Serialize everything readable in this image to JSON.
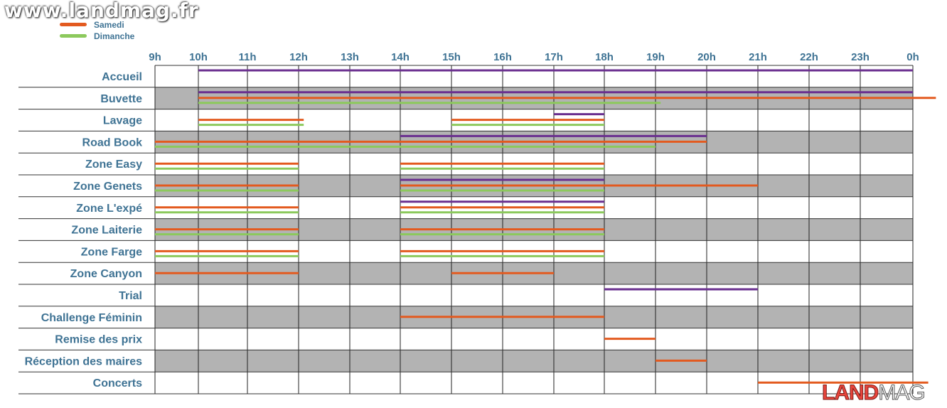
{
  "watermark": "www.landmag.fr",
  "logo": {
    "part1": "LAND",
    "part2": "MAG"
  },
  "colors": {
    "purple": "#6a2f8f",
    "orange": "#e35a1f",
    "green": "#8cc95c",
    "grey": "#b3b3b3",
    "label": "#3f7394"
  },
  "chart_data": {
    "type": "gantt",
    "legend": [
      {
        "name": "Samedi",
        "color": "#e35a1f"
      },
      {
        "name": "Dimanche",
        "color": "#8cc95c"
      }
    ],
    "legend_placement": "top-left",
    "x_ticks": [
      "9h",
      "10h",
      "11h",
      "12h",
      "13h",
      "14h",
      "15h",
      "16h",
      "17h",
      "18h",
      "19h",
      "20h",
      "21h",
      "22h",
      "23h",
      "0h"
    ],
    "xlim": [
      9,
      24
    ],
    "rows": [
      {
        "label": "Accueil",
        "purple": [
          [
            10,
            24
          ]
        ],
        "orange": [],
        "green": []
      },
      {
        "label": "Buvette",
        "purple": [
          [
            10,
            24
          ]
        ],
        "orange": [
          [
            10,
            24.45
          ]
        ],
        "green": [
          [
            10,
            19.1
          ]
        ]
      },
      {
        "label": "Lavage",
        "purple": [
          [
            17,
            18
          ]
        ],
        "orange": [
          [
            10,
            12.1
          ],
          [
            15,
            18
          ]
        ],
        "green": [
          [
            10,
            12.1
          ],
          [
            15,
            18
          ]
        ]
      },
      {
        "label": "Road Book",
        "purple": [
          [
            14,
            20
          ]
        ],
        "orange": [
          [
            9,
            20
          ]
        ],
        "green": [
          [
            9,
            19
          ]
        ]
      },
      {
        "label": "Zone Easy",
        "purple": [],
        "orange": [
          [
            9,
            12
          ],
          [
            14,
            18
          ]
        ],
        "green": [
          [
            9,
            12
          ],
          [
            14,
            18
          ]
        ]
      },
      {
        "label": "Zone Genets",
        "purple": [
          [
            14,
            18
          ]
        ],
        "orange": [
          [
            9,
            12
          ],
          [
            14,
            21
          ]
        ],
        "green": [
          [
            9,
            12
          ],
          [
            14,
            18
          ]
        ]
      },
      {
        "label": "Zone L'expé",
        "purple": [
          [
            14,
            18
          ]
        ],
        "orange": [
          [
            9,
            12
          ],
          [
            14,
            18
          ]
        ],
        "green": [
          [
            9,
            12
          ],
          [
            14,
            18
          ]
        ]
      },
      {
        "label": "Zone Laiterie",
        "purple": [],
        "orange": [
          [
            9,
            12
          ],
          [
            14,
            18
          ]
        ],
        "green": [
          [
            9,
            12
          ],
          [
            14,
            18
          ]
        ]
      },
      {
        "label": "Zone Farge",
        "purple": [],
        "orange": [
          [
            9,
            12
          ],
          [
            14,
            18
          ]
        ],
        "green": [
          [
            9,
            12
          ],
          [
            14,
            18
          ]
        ]
      },
      {
        "label": "Zone Canyon",
        "purple": [],
        "orange": [
          [
            9,
            12
          ],
          [
            15,
            17
          ]
        ],
        "green": []
      },
      {
        "label": "Trial",
        "purple": [
          [
            18,
            21
          ]
        ],
        "orange": [],
        "green": []
      },
      {
        "label": "Challenge Féminin",
        "purple": [],
        "orange": [
          [
            14,
            18
          ]
        ],
        "green": []
      },
      {
        "label": "Remise des prix",
        "purple": [],
        "orange": [
          [
            18,
            19
          ]
        ],
        "green": []
      },
      {
        "label": "Réception des maires",
        "purple": [],
        "orange": [
          [
            19,
            20
          ]
        ],
        "green": []
      },
      {
        "label": "Concerts",
        "purple": [],
        "orange": [
          [
            21,
            24.3
          ]
        ],
        "green": []
      }
    ]
  }
}
